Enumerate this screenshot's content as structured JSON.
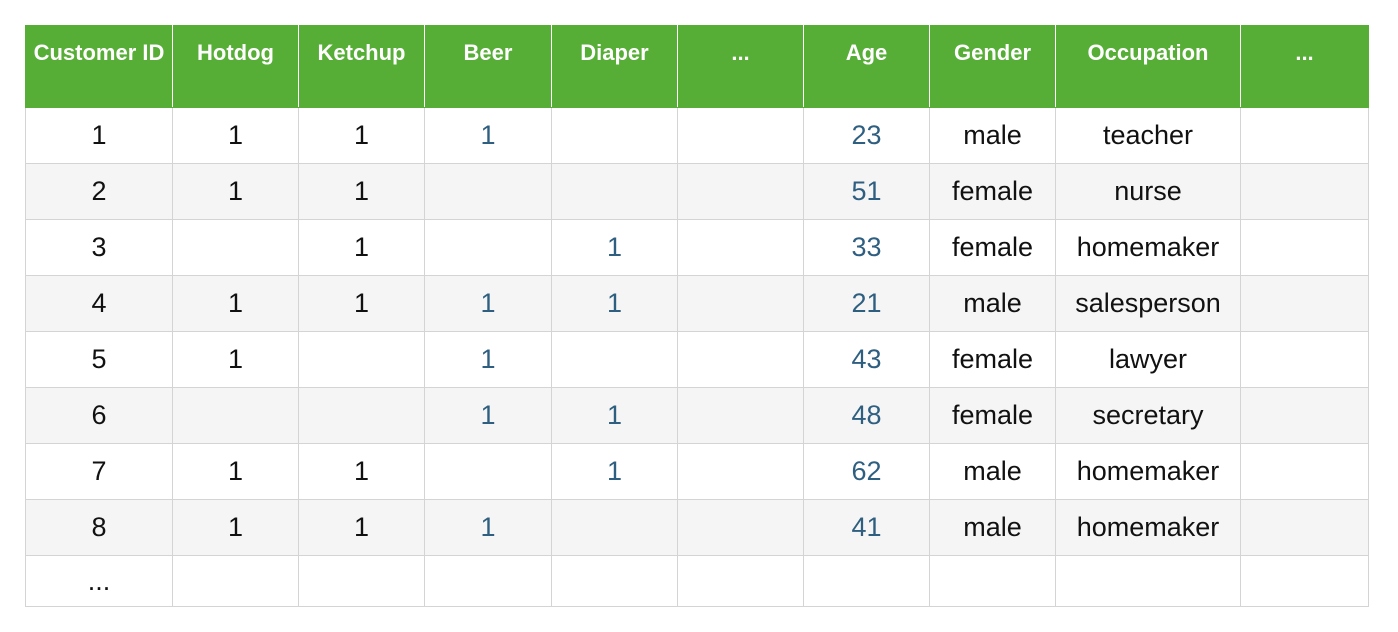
{
  "table": {
    "headers": {
      "customer_id": "Customer ID",
      "hotdog": "Hotdog",
      "ketchup": "Ketchup",
      "beer": "Beer",
      "diaper": "Diaper",
      "more_items": "...",
      "age": "Age",
      "gender": "Gender",
      "occupation": "Occupation",
      "more_attrs": "..."
    },
    "rows": [
      {
        "id": "1",
        "hotdog": "1",
        "ketchup": "1",
        "beer": "1",
        "diaper": "",
        "more": "",
        "age": "23",
        "gender": "male",
        "occupation": "teacher",
        "more2": ""
      },
      {
        "id": "2",
        "hotdog": "1",
        "ketchup": "1",
        "beer": "",
        "diaper": "",
        "more": "",
        "age": "51",
        "gender": "female",
        "occupation": "nurse",
        "more2": ""
      },
      {
        "id": "3",
        "hotdog": "",
        "ketchup": "1",
        "beer": "",
        "diaper": "1",
        "more": "",
        "age": "33",
        "gender": "female",
        "occupation": "homemaker",
        "more2": ""
      },
      {
        "id": "4",
        "hotdog": "1",
        "ketchup": "1",
        "beer": "1",
        "diaper": "1",
        "more": "",
        "age": "21",
        "gender": "male",
        "occupation": "salesperson",
        "more2": ""
      },
      {
        "id": "5",
        "hotdog": "1",
        "ketchup": "",
        "beer": "1",
        "diaper": "",
        "more": "",
        "age": "43",
        "gender": "female",
        "occupation": "lawyer",
        "more2": ""
      },
      {
        "id": "6",
        "hotdog": "",
        "ketchup": "",
        "beer": "1",
        "diaper": "1",
        "more": "",
        "age": "48",
        "gender": "female",
        "occupation": "secretary",
        "more2": ""
      },
      {
        "id": "7",
        "hotdog": "1",
        "ketchup": "1",
        "beer": "",
        "diaper": "1",
        "more": "",
        "age": "62",
        "gender": "male",
        "occupation": "homemaker",
        "more2": ""
      },
      {
        "id": "8",
        "hotdog": "1",
        "ketchup": "1",
        "beer": "1",
        "diaper": "",
        "more": "",
        "age": "41",
        "gender": "male",
        "occupation": "homemaker",
        "more2": ""
      }
    ],
    "ellipsis_row": {
      "id": "..."
    }
  },
  "colors": {
    "header_bg": "#56ae36",
    "header_text": "#ffffff",
    "blue_values": "#2f5f80",
    "stripe": "#f5f5f5"
  }
}
